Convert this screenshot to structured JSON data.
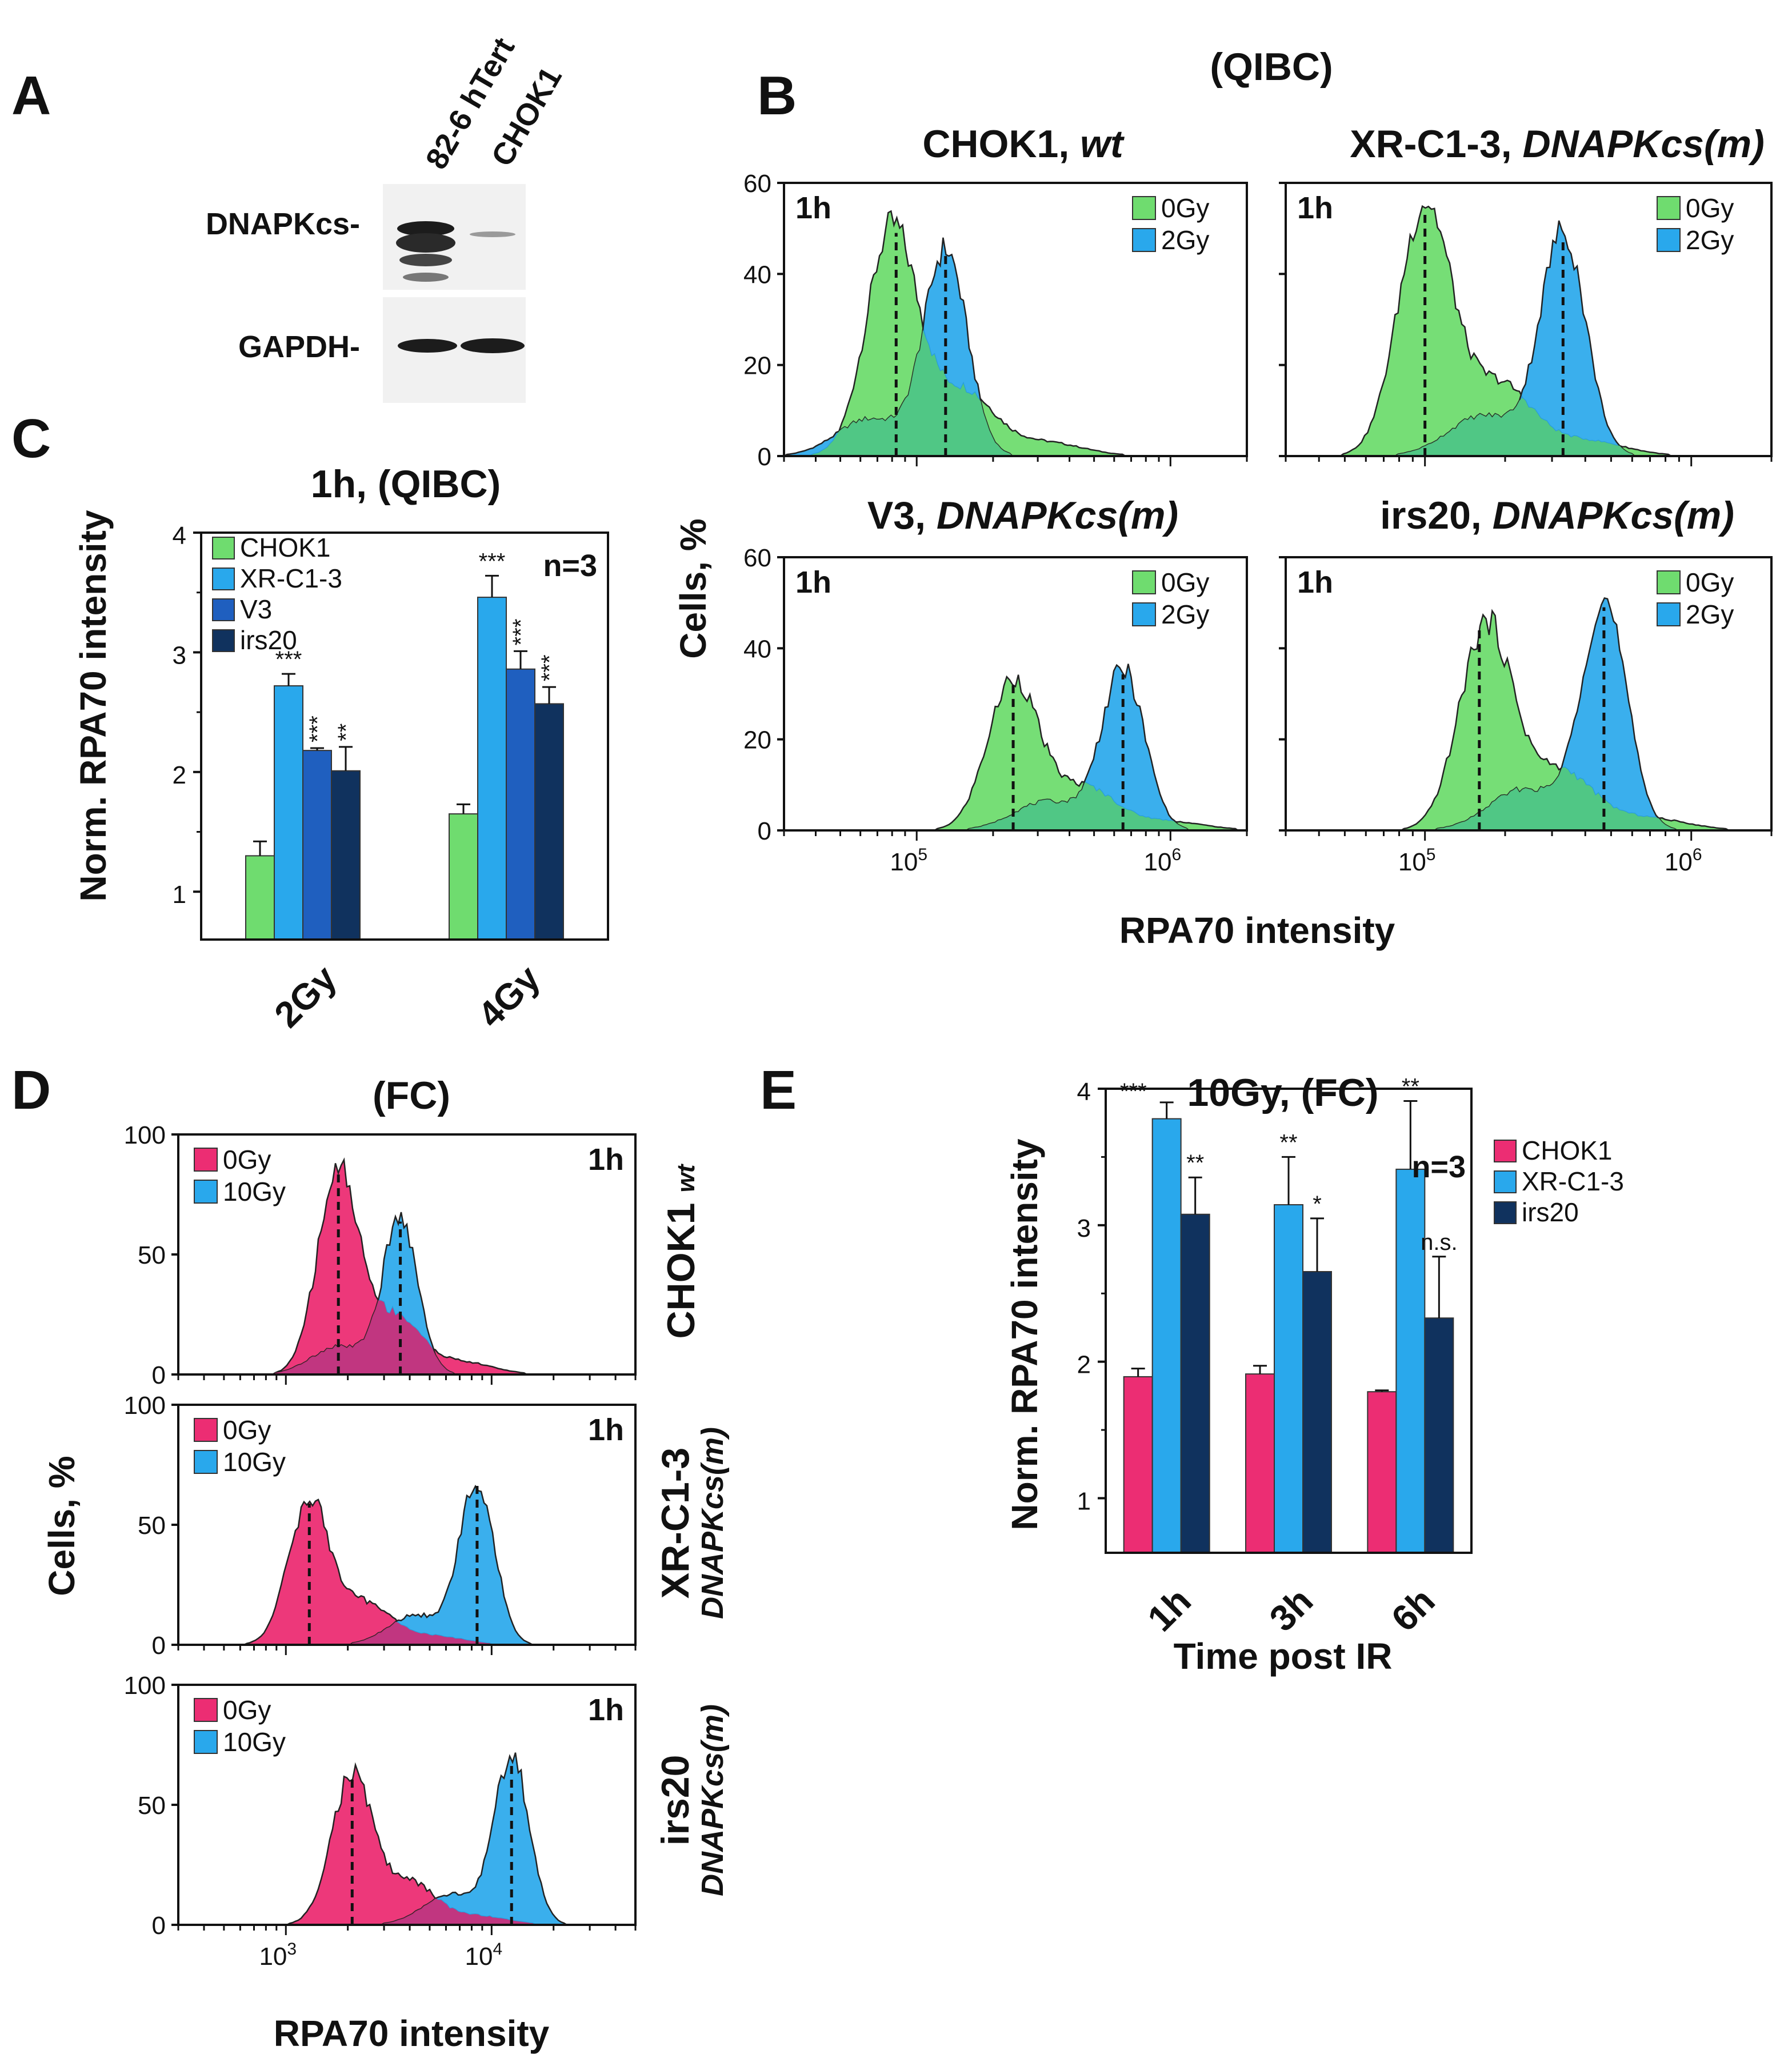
{
  "colors": {
    "green": "#6fdc6f",
    "green_stroke": "#3a9a3a",
    "cyan": "#29a8ec",
    "blue": "#1f5fbf",
    "navy": "#10325e",
    "pink": "#ec2d73",
    "mix_green": "#52c880",
    "mix_pink": "#c8307a",
    "outline": "#222222"
  },
  "panelA": {
    "letter": "A",
    "lanes": [
      "82-6 hTert",
      "CHOK1"
    ],
    "rows": [
      "DNAPKcs-",
      "GAPDH-"
    ]
  },
  "chart_data": [
    {
      "id": "B",
      "type": "area",
      "panel_letter": "B",
      "suptitle": "(QIBC)",
      "ylabel": "Cells, %",
      "xlabel": "RPA70 intensity",
      "xscale": "log",
      "xlim": [
        30000,
        2000000
      ],
      "ylim": [
        0,
        60
      ],
      "yticks": [
        "0",
        "20",
        "40",
        "60"
      ],
      "xticks": [
        {
          "base": "10",
          "exp": "5"
        },
        {
          "base": "10",
          "exp": "6"
        }
      ],
      "legend": [
        "0Gy",
        "2Gy"
      ],
      "subplots": [
        {
          "title_main": "CHOK1, ",
          "title_italic": "wt",
          "timepoint": "1h",
          "series": [
            {
              "name": "0Gy",
              "peak_x": 80000,
              "peak_y": 50,
              "medians": 83000
            },
            {
              "name": "2Gy",
              "peak_x": 130000,
              "peak_y": 45,
              "medians": 130000
            }
          ]
        },
        {
          "title_main": "XR-C1-3, ",
          "title_italic": "DNAPKcs(m)",
          "timepoint": "1h",
          "series": [
            {
              "name": "0Gy",
              "peak_x": 100000,
              "peak_y": 55,
              "medians": 100000
            },
            {
              "name": "2Gy",
              "peak_x": 330000,
              "peak_y": 49,
              "medians": 330000
            }
          ]
        },
        {
          "title_main": "V3, ",
          "title_italic": "DNAPKcs(m)",
          "timepoint": "1h",
          "series": [
            {
              "name": "0Gy",
              "peak_x": 240000,
              "peak_y": 33,
              "medians": 240000
            },
            {
              "name": "2Gy",
              "peak_x": 650000,
              "peak_y": 35,
              "medians": 650000
            }
          ]
        },
        {
          "title_main": "irs20, ",
          "title_italic": "DNAPKcs(m)",
          "timepoint": "1h",
          "series": [
            {
              "name": "0Gy",
              "peak_x": 170000,
              "peak_y": 45,
              "medians": 160000
            },
            {
              "name": "2Gy",
              "peak_x": 470000,
              "peak_y": 50,
              "medians": 470000
            }
          ]
        }
      ]
    },
    {
      "id": "C",
      "type": "bar",
      "panel_letter": "C",
      "title": "1h, (QIBC)",
      "ylabel": "Norm. RPA70 intensity",
      "ylim": [
        0.6,
        4.0
      ],
      "yticks": [
        1,
        2,
        3,
        4
      ],
      "categories": [
        "2Gy",
        "4Gy"
      ],
      "annotation": "n=3",
      "series": [
        {
          "name": "CHOK1",
          "values": [
            1.3,
            1.65
          ],
          "errors": [
            0.12,
            0.08
          ],
          "sig": [
            "",
            ""
          ]
        },
        {
          "name": "XR-C1-3",
          "values": [
            2.72,
            3.46
          ],
          "errors": [
            0.1,
            0.18
          ],
          "sig": [
            "***",
            "***"
          ]
        },
        {
          "name": "V3",
          "values": [
            2.18,
            2.86
          ],
          "errors": [
            0.02,
            0.15
          ],
          "sig": [
            "***",
            "***"
          ]
        },
        {
          "name": "irs20",
          "values": [
            2.01,
            2.57
          ],
          "errors": [
            0.2,
            0.14
          ],
          "sig": [
            "**",
            "***"
          ]
        }
      ]
    },
    {
      "id": "D",
      "type": "area",
      "panel_letter": "D",
      "title": "(FC)",
      "ylabel": "Cells, %",
      "xlabel": "RPA70 intensity",
      "xscale": "log",
      "xlim": [
        300,
        50000
      ],
      "ylim": [
        0,
        100
      ],
      "yticks": [
        "0",
        "50",
        "100"
      ],
      "xticks": [
        {
          "base": "10",
          "exp": "3"
        },
        {
          "base": "10",
          "exp": "4"
        }
      ],
      "legend": [
        "0Gy",
        "10Gy"
      ],
      "subplots": [
        {
          "side_main": "CHOK1",
          "side_italic": "wt",
          "timepoint": "1h",
          "series": [
            {
              "name": "0Gy",
              "peak_x": 1800,
              "peak_y": 85,
              "medians": 1800
            },
            {
              "name": "10Gy",
              "peak_x": 3600,
              "peak_y": 65,
              "medians": 3600
            }
          ]
        },
        {
          "side_main": "XR-C1-3",
          "side_italic": "DNAPKcs(m)",
          "timepoint": "1h",
          "series": [
            {
              "name": "0Gy",
              "peak_x": 1300,
              "peak_y": 60,
              "medians": 1300
            },
            {
              "name": "10Gy",
              "peak_x": 8500,
              "peak_y": 68,
              "medians": 8500
            }
          ]
        },
        {
          "side_main": "irs20",
          "side_italic": "DNAPKcs(m)",
          "timepoint": "1h",
          "series": [
            {
              "name": "0Gy",
              "peak_x": 2100,
              "peak_y": 62,
              "medians": 2100
            },
            {
              "name": "10Gy",
              "peak_x": 12500,
              "peak_y": 70,
              "medians": 12500
            }
          ]
        }
      ]
    },
    {
      "id": "E",
      "type": "bar",
      "panel_letter": "E",
      "title": "10Gy, (FC)",
      "ylabel": "Norm. RPA70 intensity",
      "xlabel": "Time post IR",
      "ylim": [
        0.6,
        4.0
      ],
      "yticks": [
        1,
        2,
        3,
        4
      ],
      "categories": [
        "1h",
        "3h",
        "6h"
      ],
      "annotation": "n=3",
      "series": [
        {
          "name": "CHOK1",
          "values": [
            1.89,
            1.91,
            1.78
          ],
          "errors": [
            0.06,
            0.06,
            0.01
          ],
          "sig": [
            "",
            "",
            ""
          ]
        },
        {
          "name": "XR-C1-3",
          "values": [
            3.78,
            3.15,
            3.41
          ],
          "errors": [
            0.12,
            0.35,
            0.5
          ],
          "sig": [
            "***",
            "**",
            "**"
          ]
        },
        {
          "name": "irs20",
          "values": [
            3.08,
            2.66,
            2.32
          ],
          "errors": [
            0.27,
            0.39,
            0.45
          ],
          "sig": [
            "**",
            "*",
            "n.s."
          ]
        }
      ]
    }
  ]
}
